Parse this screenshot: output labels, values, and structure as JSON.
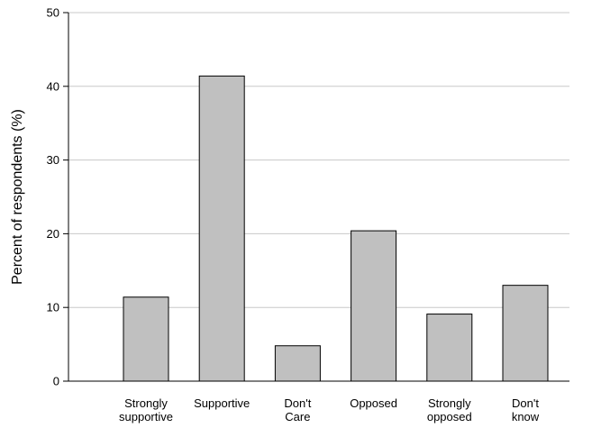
{
  "chart_data": {
    "type": "bar",
    "categories": [
      [
        "Strongly",
        "supportive"
      ],
      [
        "Supportive"
      ],
      [
        "Don't",
        "Care"
      ],
      [
        "Opposed"
      ],
      [
        "Strongly",
        "opposed"
      ],
      [
        "Don't",
        "know"
      ]
    ],
    "values": [
      11.4,
      41.4,
      4.8,
      20.4,
      9.1,
      13.0
    ],
    "title": "",
    "xlabel": "",
    "ylabel": "Percent of respondents (%)",
    "ylim": [
      0,
      50
    ],
    "yticks": [
      0,
      10,
      20,
      30,
      40,
      50
    ],
    "grid": true,
    "bar_color": "#c0c0c0",
    "bar_edge_color": "#000000",
    "grid_color": "#c8c8c8"
  }
}
